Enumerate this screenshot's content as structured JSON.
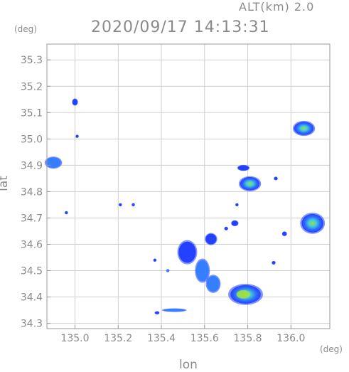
{
  "header": {
    "altitude": "ALT(km) 2.0",
    "timestamp": "2020/09/17 14:13:31"
  },
  "axes": {
    "y_unit": "(deg)",
    "x_unit": "(deg)",
    "xlabel": "lon",
    "ylabel": "lat",
    "xlim": [
      134.87,
      136.18
    ],
    "ylim": [
      34.28,
      35.36
    ],
    "x_ticks": [
      135.0,
      135.2,
      135.4,
      135.6,
      135.8,
      136.0
    ],
    "x_tick_labels": [
      "135.0",
      "135.2",
      "135.4",
      "135.6",
      "135.8",
      "136.0"
    ],
    "y_ticks": [
      34.3,
      34.4,
      34.5,
      34.6,
      34.7,
      34.8,
      34.9,
      35.0,
      35.1,
      35.2,
      35.3
    ],
    "y_tick_labels": [
      "34.3",
      "34.4",
      "34.5",
      "34.6",
      "34.7",
      "34.8",
      "34.9",
      "35.0",
      "35.1",
      "35.2",
      "35.3"
    ],
    "grid": true
  },
  "colors": {
    "low": "#1f3cff",
    "mid": "#3fd0d8",
    "high": "#9ee040",
    "grid": "#cfcfcf",
    "frame": "#9a9a9a"
  },
  "echoes": [
    {
      "lon": 134.9,
      "lat": 34.91,
      "rx": 0.035,
      "ry": 0.02,
      "level": 2
    },
    {
      "lon": 135.0,
      "lat": 35.14,
      "rx": 0.012,
      "ry": 0.012,
      "level": 1
    },
    {
      "lon": 135.01,
      "lat": 35.01,
      "rx": 0.004,
      "ry": 0.004,
      "level": 1
    },
    {
      "lon": 134.96,
      "lat": 34.72,
      "rx": 0.002,
      "ry": 0.002,
      "level": 1
    },
    {
      "lon": 136.06,
      "lat": 35.04,
      "rx": 0.045,
      "ry": 0.025,
      "level": 3
    },
    {
      "lon": 135.81,
      "lat": 34.83,
      "rx": 0.045,
      "ry": 0.025,
      "level": 3
    },
    {
      "lon": 135.78,
      "lat": 34.89,
      "rx": 0.025,
      "ry": 0.01,
      "level": 1
    },
    {
      "lon": 135.93,
      "lat": 34.85,
      "rx": 0.008,
      "ry": 0.006,
      "level": 1
    },
    {
      "lon": 136.1,
      "lat": 34.68,
      "rx": 0.05,
      "ry": 0.035,
      "level": 3
    },
    {
      "lon": 135.97,
      "lat": 34.64,
      "rx": 0.01,
      "ry": 0.008,
      "level": 1
    },
    {
      "lon": 135.79,
      "lat": 34.41,
      "rx": 0.07,
      "ry": 0.035,
      "level": 4
    },
    {
      "lon": 135.64,
      "lat": 34.45,
      "rx": 0.03,
      "ry": 0.03,
      "level": 2
    },
    {
      "lon": 135.59,
      "lat": 34.5,
      "rx": 0.03,
      "ry": 0.04,
      "level": 2
    },
    {
      "lon": 135.52,
      "lat": 34.57,
      "rx": 0.04,
      "ry": 0.04,
      "level": 1
    },
    {
      "lon": 135.63,
      "lat": 34.62,
      "rx": 0.025,
      "ry": 0.02,
      "level": 1
    },
    {
      "lon": 135.74,
      "lat": 34.68,
      "rx": 0.015,
      "ry": 0.01,
      "level": 1
    },
    {
      "lon": 135.7,
      "lat": 34.66,
      "rx": 0.008,
      "ry": 0.006,
      "level": 1
    },
    {
      "lon": 135.92,
      "lat": 34.53,
      "rx": 0.008,
      "ry": 0.006,
      "level": 1
    },
    {
      "lon": 135.46,
      "lat": 34.35,
      "rx": 0.05,
      "ry": 0.006,
      "level": 2
    },
    {
      "lon": 135.38,
      "lat": 34.34,
      "rx": 0.01,
      "ry": 0.004,
      "level": 1
    },
    {
      "lon": 135.37,
      "lat": 34.54,
      "rx": 0.004,
      "ry": 0.004,
      "level": 1
    },
    {
      "lon": 135.21,
      "lat": 34.75,
      "rx": 0.004,
      "ry": 0.004,
      "level": 1
    },
    {
      "lon": 135.27,
      "lat": 34.75,
      "rx": 0.003,
      "ry": 0.003,
      "level": 1
    },
    {
      "lon": 135.43,
      "lat": 34.5,
      "rx": 0.006,
      "ry": 0.004,
      "level": 2
    },
    {
      "lon": 135.75,
      "lat": 34.75,
      "rx": 0.003,
      "ry": 0.003,
      "level": 1
    }
  ]
}
